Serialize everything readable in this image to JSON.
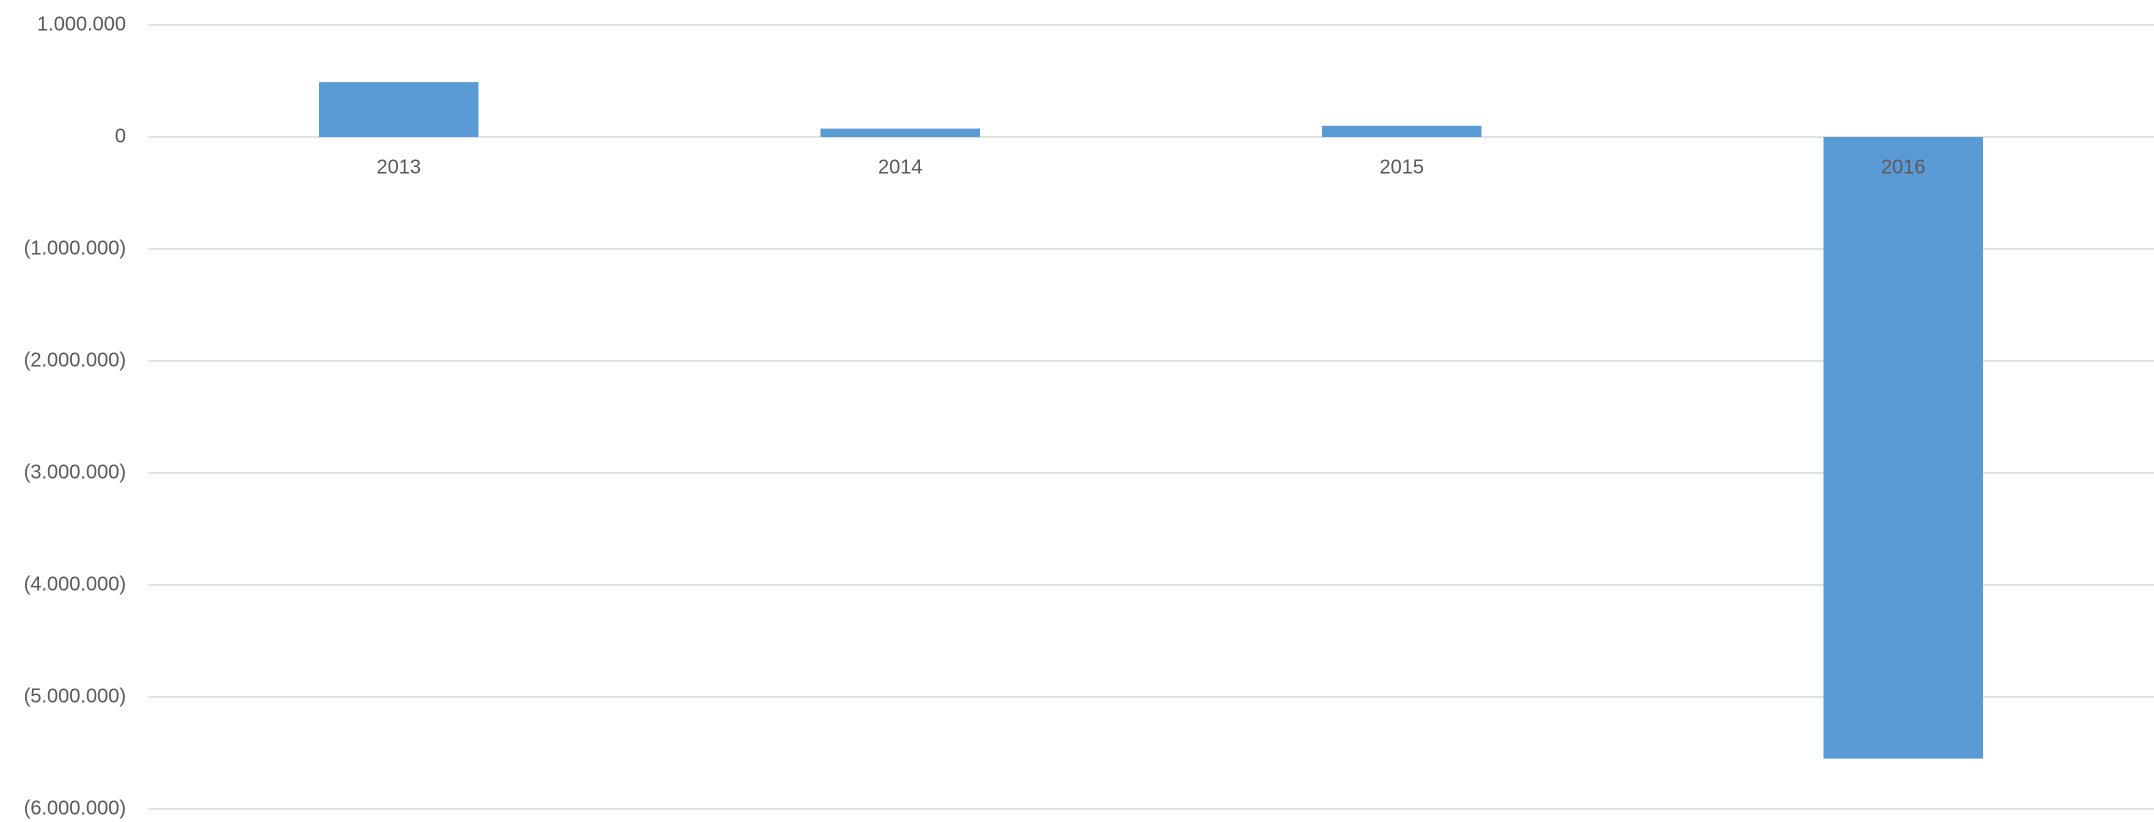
{
  "chart_data": {
    "type": "bar",
    "categories": [
      "2013",
      "2014",
      "2015",
      "2016"
    ],
    "values": [
      490000,
      75000,
      100000,
      -5550000
    ],
    "color": "#5b9bd5",
    "ylim": [
      -6000000,
      1000000
    ],
    "yticks": [
      {
        "value": -6000000,
        "label": "(6.000.000)"
      },
      {
        "value": -5000000,
        "label": "(5.000.000)"
      },
      {
        "value": -4000000,
        "label": "(4.000.000)"
      },
      {
        "value": -3000000,
        "label": "(3.000.000)"
      },
      {
        "value": -2000000,
        "label": "(2.000.000)"
      },
      {
        "value": -1000000,
        "label": "(1.000.000)"
      },
      0,
      {
        "value": 1000000,
        "label": "1.000.000"
      }
    ],
    "grid": true
  }
}
